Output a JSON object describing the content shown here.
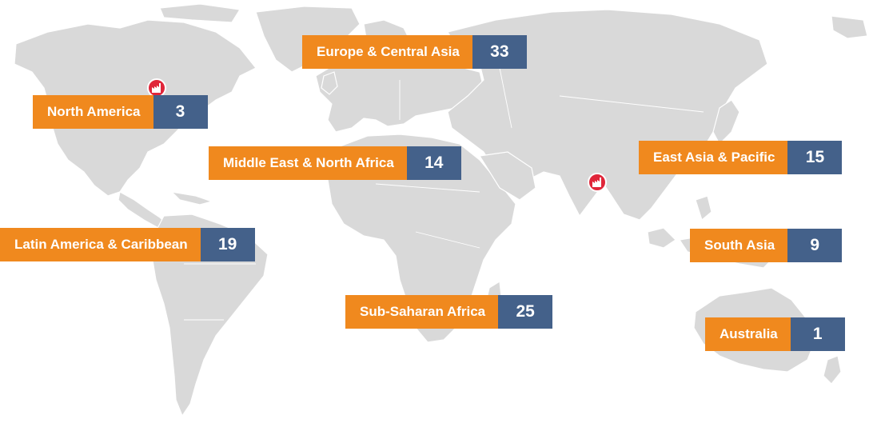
{
  "map": {
    "land_color": "#d9d9d9",
    "label_color": "#f0891e",
    "count_color": "#44618a",
    "marker_color": "#e0263a"
  },
  "regions": [
    {
      "id": "europe-central-asia",
      "name": "Europe & Central Asia",
      "count": "33"
    },
    {
      "id": "north-america",
      "name": "North America",
      "count": "3"
    },
    {
      "id": "middle-east-north-africa",
      "name": "Middle East & North Africa",
      "count": "14"
    },
    {
      "id": "east-asia-pacific",
      "name": "East Asia & Pacific",
      "count": "15"
    },
    {
      "id": "latin-america-caribbean",
      "name": "Latin America & Caribbean",
      "count": "19"
    },
    {
      "id": "south-asia",
      "name": "South Asia",
      "count": "9"
    },
    {
      "id": "sub-saharan-africa",
      "name": "Sub-Saharan Africa",
      "count": "25"
    },
    {
      "id": "australia",
      "name": "Australia",
      "count": "1"
    }
  ],
  "markers": [
    {
      "id": "factory-north-america",
      "icon": "factory-icon"
    },
    {
      "id": "factory-south-asia",
      "icon": "factory-icon"
    }
  ]
}
